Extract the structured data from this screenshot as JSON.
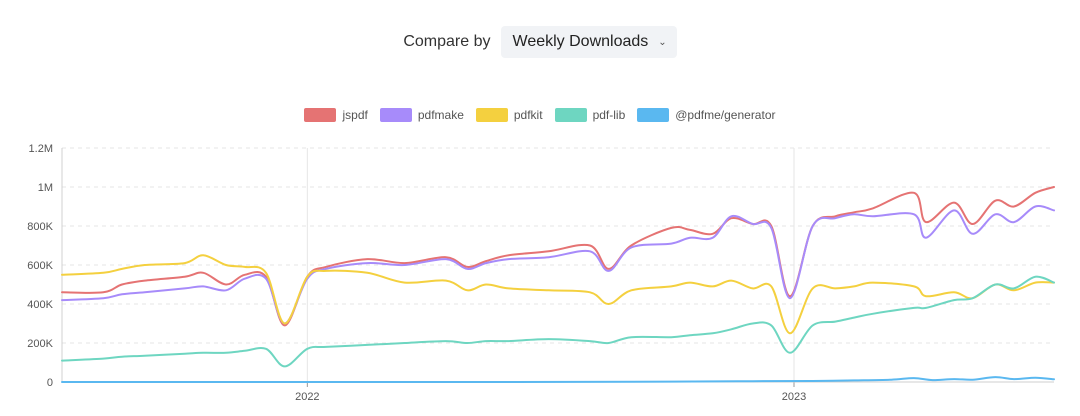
{
  "compare": {
    "label": "Compare by",
    "selected": "Weekly Downloads"
  },
  "chart_data": {
    "type": "line",
    "ylim": [
      0,
      1200000
    ],
    "yticks": [
      {
        "value": 0,
        "label": "0"
      },
      {
        "value": 200000,
        "label": "200K"
      },
      {
        "value": 400000,
        "label": "400K"
      },
      {
        "value": 600000,
        "label": "600K"
      },
      {
        "value": 800000,
        "label": "800K"
      },
      {
        "value": 1000000,
        "label": "1M"
      },
      {
        "value": 1200000,
        "label": "1.2M"
      }
    ],
    "xlim": [
      "2021-07-01",
      "2023-07-15"
    ],
    "xticks": [
      {
        "date": "2022-01-01",
        "label": "2022"
      },
      {
        "date": "2023-01-01",
        "label": "2023"
      }
    ],
    "grid": true,
    "legend_position": "top-center",
    "series": [
      {
        "name": "jspdf",
        "color": "#e57373",
        "points": [
          [
            "2021-07-01",
            460000
          ],
          [
            "2021-08-01",
            460000
          ],
          [
            "2021-08-15",
            500000
          ],
          [
            "2021-09-01",
            520000
          ],
          [
            "2021-10-01",
            540000
          ],
          [
            "2021-10-15",
            560000
          ],
          [
            "2021-11-01",
            500000
          ],
          [
            "2021-11-15",
            550000
          ],
          [
            "2021-12-01",
            540000
          ],
          [
            "2021-12-15",
            290000
          ],
          [
            "2022-01-01",
            540000
          ],
          [
            "2022-01-15",
            590000
          ],
          [
            "2022-02-15",
            630000
          ],
          [
            "2022-03-15",
            610000
          ],
          [
            "2022-04-15",
            640000
          ],
          [
            "2022-05-01",
            590000
          ],
          [
            "2022-05-15",
            620000
          ],
          [
            "2022-06-01",
            650000
          ],
          [
            "2022-07-01",
            670000
          ],
          [
            "2022-08-01",
            700000
          ],
          [
            "2022-08-15",
            580000
          ],
          [
            "2022-09-01",
            700000
          ],
          [
            "2022-10-01",
            790000
          ],
          [
            "2022-10-15",
            780000
          ],
          [
            "2022-11-01",
            760000
          ],
          [
            "2022-11-15",
            840000
          ],
          [
            "2022-12-01",
            810000
          ],
          [
            "2022-12-15",
            800000
          ],
          [
            "2022-12-29",
            440000
          ],
          [
            "2023-01-15",
            800000
          ],
          [
            "2023-02-01",
            850000
          ],
          [
            "2023-02-15",
            870000
          ],
          [
            "2023-03-01",
            890000
          ],
          [
            "2023-04-01",
            970000
          ],
          [
            "2023-04-10",
            820000
          ],
          [
            "2023-05-01",
            920000
          ],
          [
            "2023-05-15",
            810000
          ],
          [
            "2023-06-01",
            930000
          ],
          [
            "2023-06-15",
            900000
          ],
          [
            "2023-07-01",
            970000
          ],
          [
            "2023-07-15",
            1000000
          ]
        ]
      },
      {
        "name": "pdfmake",
        "color": "#a78bfa",
        "points": [
          [
            "2021-07-01",
            420000
          ],
          [
            "2021-08-01",
            430000
          ],
          [
            "2021-08-15",
            450000
          ],
          [
            "2021-09-01",
            460000
          ],
          [
            "2021-10-01",
            480000
          ],
          [
            "2021-10-15",
            490000
          ],
          [
            "2021-11-01",
            470000
          ],
          [
            "2021-11-15",
            530000
          ],
          [
            "2021-12-01",
            530000
          ],
          [
            "2021-12-15",
            300000
          ],
          [
            "2022-01-01",
            530000
          ],
          [
            "2022-01-15",
            580000
          ],
          [
            "2022-02-15",
            610000
          ],
          [
            "2022-03-15",
            600000
          ],
          [
            "2022-04-15",
            630000
          ],
          [
            "2022-05-01",
            580000
          ],
          [
            "2022-05-15",
            610000
          ],
          [
            "2022-06-01",
            630000
          ],
          [
            "2022-07-01",
            640000
          ],
          [
            "2022-08-01",
            670000
          ],
          [
            "2022-08-15",
            570000
          ],
          [
            "2022-09-01",
            690000
          ],
          [
            "2022-10-01",
            710000
          ],
          [
            "2022-10-15",
            740000
          ],
          [
            "2022-11-01",
            740000
          ],
          [
            "2022-11-15",
            850000
          ],
          [
            "2022-12-01",
            810000
          ],
          [
            "2022-12-15",
            790000
          ],
          [
            "2022-12-29",
            430000
          ],
          [
            "2023-01-15",
            800000
          ],
          [
            "2023-02-01",
            840000
          ],
          [
            "2023-02-15",
            860000
          ],
          [
            "2023-03-01",
            850000
          ],
          [
            "2023-04-01",
            860000
          ],
          [
            "2023-04-10",
            740000
          ],
          [
            "2023-05-01",
            880000
          ],
          [
            "2023-05-15",
            760000
          ],
          [
            "2023-06-01",
            860000
          ],
          [
            "2023-06-15",
            820000
          ],
          [
            "2023-07-01",
            900000
          ],
          [
            "2023-07-15",
            880000
          ]
        ]
      },
      {
        "name": "pdfkit",
        "color": "#f4d03f",
        "points": [
          [
            "2021-07-01",
            550000
          ],
          [
            "2021-08-01",
            560000
          ],
          [
            "2021-08-15",
            580000
          ],
          [
            "2021-09-01",
            600000
          ],
          [
            "2021-10-01",
            610000
          ],
          [
            "2021-10-15",
            650000
          ],
          [
            "2021-11-01",
            600000
          ],
          [
            "2021-11-15",
            590000
          ],
          [
            "2021-12-01",
            560000
          ],
          [
            "2021-12-15",
            300000
          ],
          [
            "2022-01-01",
            540000
          ],
          [
            "2022-01-15",
            570000
          ],
          [
            "2022-02-15",
            560000
          ],
          [
            "2022-03-15",
            510000
          ],
          [
            "2022-04-15",
            520000
          ],
          [
            "2022-05-01",
            470000
          ],
          [
            "2022-05-15",
            500000
          ],
          [
            "2022-06-01",
            480000
          ],
          [
            "2022-07-01",
            470000
          ],
          [
            "2022-08-01",
            460000
          ],
          [
            "2022-08-15",
            400000
          ],
          [
            "2022-09-01",
            470000
          ],
          [
            "2022-10-01",
            490000
          ],
          [
            "2022-10-15",
            510000
          ],
          [
            "2022-11-01",
            490000
          ],
          [
            "2022-11-15",
            520000
          ],
          [
            "2022-12-01",
            480000
          ],
          [
            "2022-12-15",
            490000
          ],
          [
            "2022-12-29",
            250000
          ],
          [
            "2023-01-15",
            480000
          ],
          [
            "2023-02-01",
            480000
          ],
          [
            "2023-02-15",
            490000
          ],
          [
            "2023-03-01",
            510000
          ],
          [
            "2023-04-01",
            490000
          ],
          [
            "2023-04-10",
            440000
          ],
          [
            "2023-05-01",
            460000
          ],
          [
            "2023-05-15",
            430000
          ],
          [
            "2023-06-01",
            500000
          ],
          [
            "2023-06-15",
            470000
          ],
          [
            "2023-07-01",
            510000
          ],
          [
            "2023-07-15",
            510000
          ]
        ]
      },
      {
        "name": "pdf-lib",
        "color": "#6ed6c1",
        "points": [
          [
            "2021-07-01",
            110000
          ],
          [
            "2021-08-01",
            120000
          ],
          [
            "2021-08-15",
            130000
          ],
          [
            "2021-09-01",
            135000
          ],
          [
            "2021-10-01",
            145000
          ],
          [
            "2021-10-15",
            150000
          ],
          [
            "2021-11-01",
            150000
          ],
          [
            "2021-11-15",
            160000
          ],
          [
            "2021-12-01",
            170000
          ],
          [
            "2021-12-15",
            80000
          ],
          [
            "2022-01-01",
            170000
          ],
          [
            "2022-01-15",
            180000
          ],
          [
            "2022-02-15",
            190000
          ],
          [
            "2022-03-15",
            200000
          ],
          [
            "2022-04-15",
            210000
          ],
          [
            "2022-05-01",
            200000
          ],
          [
            "2022-05-15",
            210000
          ],
          [
            "2022-06-01",
            210000
          ],
          [
            "2022-07-01",
            220000
          ],
          [
            "2022-08-01",
            210000
          ],
          [
            "2022-08-15",
            200000
          ],
          [
            "2022-09-01",
            230000
          ],
          [
            "2022-10-01",
            230000
          ],
          [
            "2022-10-15",
            240000
          ],
          [
            "2022-11-01",
            250000
          ],
          [
            "2022-11-15",
            270000
          ],
          [
            "2022-12-01",
            300000
          ],
          [
            "2022-12-15",
            290000
          ],
          [
            "2022-12-29",
            150000
          ],
          [
            "2023-01-15",
            290000
          ],
          [
            "2023-02-01",
            310000
          ],
          [
            "2023-02-15",
            330000
          ],
          [
            "2023-03-01",
            350000
          ],
          [
            "2023-04-01",
            380000
          ],
          [
            "2023-04-10",
            380000
          ],
          [
            "2023-05-01",
            420000
          ],
          [
            "2023-05-15",
            430000
          ],
          [
            "2023-06-01",
            500000
          ],
          [
            "2023-06-15",
            480000
          ],
          [
            "2023-07-01",
            540000
          ],
          [
            "2023-07-15",
            510000
          ]
        ]
      },
      {
        "name": "@pdfme/generator",
        "color": "#5ab8f0",
        "points": [
          [
            "2021-07-01",
            0
          ],
          [
            "2022-01-01",
            0
          ],
          [
            "2022-06-01",
            0
          ],
          [
            "2022-10-01",
            2000
          ],
          [
            "2022-12-01",
            4000
          ],
          [
            "2023-01-15",
            5000
          ],
          [
            "2023-02-15",
            8000
          ],
          [
            "2023-03-15",
            12000
          ],
          [
            "2023-04-01",
            20000
          ],
          [
            "2023-04-15",
            10000
          ],
          [
            "2023-05-01",
            15000
          ],
          [
            "2023-05-15",
            12000
          ],
          [
            "2023-06-01",
            25000
          ],
          [
            "2023-06-15",
            15000
          ],
          [
            "2023-07-01",
            22000
          ],
          [
            "2023-07-15",
            14000
          ]
        ]
      }
    ]
  }
}
